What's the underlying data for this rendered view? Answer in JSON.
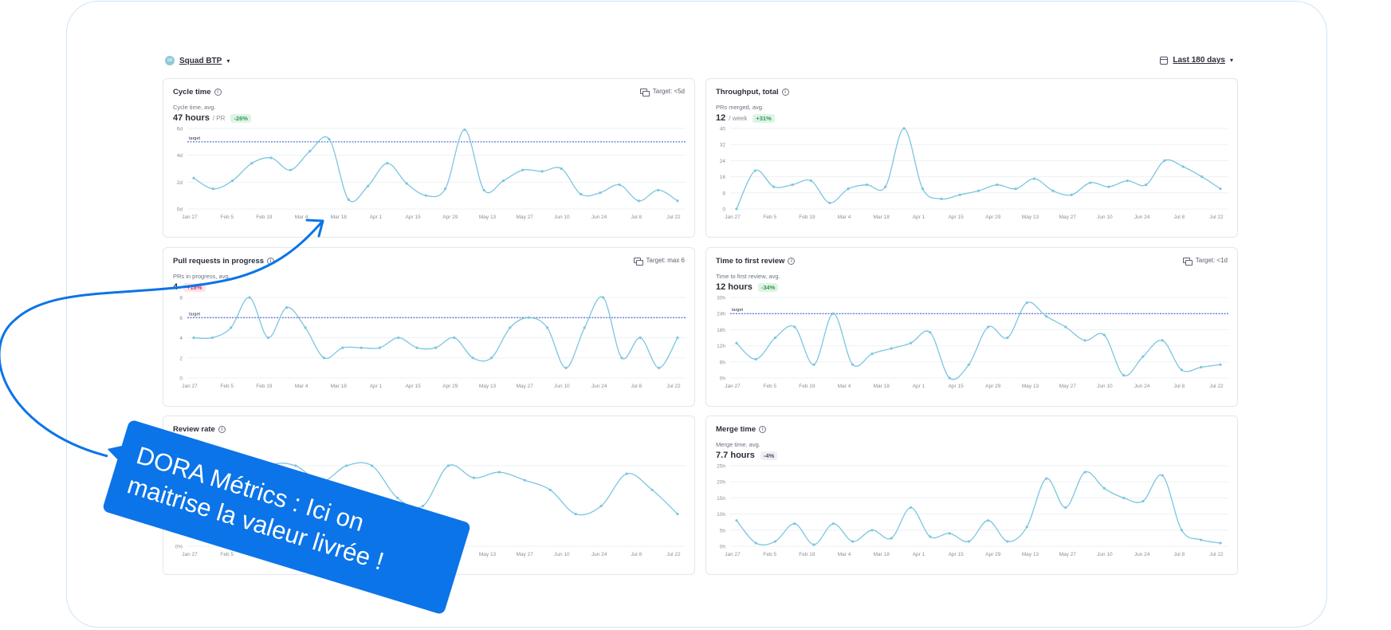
{
  "header": {
    "squad_initials": "SB",
    "squad_label": "Squad BTP",
    "date_range_label": "Last 180 days"
  },
  "x_ticks": [
    "Jan 27",
    "Feb 5",
    "Feb 19",
    "Mar 4",
    "Mar 18",
    "Apr 1",
    "Apr 15",
    "Apr 29",
    "May 13",
    "May 27",
    "Jun 10",
    "Jun 24",
    "Jul 8",
    "Jul 22"
  ],
  "colors": {
    "line": "#7cc6df",
    "target_line": "#2f55c9",
    "accent": "#0b74e8"
  },
  "cards": [
    {
      "title": "Cycle time",
      "target": "Target: <5d",
      "subtitle": "Cycle time, avg.",
      "value": "47 hours",
      "unit": "/ PR",
      "delta": "-26%",
      "delta_kind": "good",
      "y_ticks": [
        "0d",
        "2d",
        "4d",
        "6d"
      ],
      "ymax": 6,
      "target_value": 5,
      "target_label": "target",
      "values": [
        2.3,
        1.5,
        2.1,
        3.4,
        3.8,
        2.9,
        4.3,
        5.2,
        0.7,
        1.7,
        3.4,
        1.9,
        1.0,
        1.5,
        5.9,
        1.4,
        2.1,
        2.9,
        2.8,
        3.0,
        1.1,
        1.2,
        1.8,
        0.6,
        1.4,
        0.6
      ]
    },
    {
      "title": "Throughput, total",
      "target": "",
      "subtitle": "PRs merged, avg.",
      "value": "12",
      "unit": "/ week",
      "delta": "+31%",
      "delta_kind": "good",
      "y_ticks": [
        "0",
        "8",
        "16",
        "24",
        "32",
        "40"
      ],
      "ymax": 40,
      "values": [
        0,
        19,
        11,
        12,
        14,
        3,
        10,
        12,
        11,
        40,
        10,
        5,
        7,
        9,
        12,
        10,
        15,
        9,
        7,
        13,
        11,
        14,
        12,
        24,
        21,
        16,
        10
      ]
    },
    {
      "title": "Pull requests in progress",
      "target": "Target: max 6",
      "subtitle": "PRs in progress, avg.",
      "value": "4",
      "unit": "",
      "delta": "+18%",
      "delta_kind": "bad",
      "y_ticks": [
        "0",
        "2",
        "4",
        "6",
        "8"
      ],
      "ymax": 8,
      "target_value": 6,
      "target_label": "target",
      "values": [
        4,
        4,
        5,
        8,
        4,
        7,
        5,
        2,
        3,
        3,
        3,
        4,
        3,
        3,
        4,
        2,
        2,
        5,
        6,
        5,
        1,
        5,
        8,
        2,
        4,
        1,
        4
      ]
    },
    {
      "title": "Time to first review",
      "target": "Target: <1d",
      "subtitle": "Time to first review, avg.",
      "value": "12 hours",
      "unit": "",
      "delta": "-34%",
      "delta_kind": "good",
      "y_ticks": [
        "0h",
        "6h",
        "12h",
        "18h",
        "24h",
        "30h"
      ],
      "ymax": 30,
      "target_value": 24,
      "target_label": "target",
      "values": [
        13,
        7,
        15,
        19,
        5,
        24,
        5,
        9,
        11,
        13,
        17,
        0,
        5,
        19,
        15,
        28,
        23,
        19,
        14,
        16,
        1,
        8,
        14,
        3,
        4,
        5
      ]
    },
    {
      "title": "Review rate",
      "target": "",
      "subtitle": "",
      "value": "",
      "unit": "",
      "delta": "",
      "delta_kind": "neutral",
      "y_ticks": [
        "0%",
        "20%"
      ],
      "ymax": 100,
      "values": [
        60,
        65,
        70,
        100,
        100,
        80,
        100,
        100,
        60,
        50,
        100,
        85,
        92,
        82,
        70,
        40,
        50,
        90,
        70,
        40
      ]
    },
    {
      "title": "Merge time",
      "target": "",
      "subtitle": "Merge time, avg.",
      "value": "7.7 hours",
      "unit": "",
      "delta": "-4%",
      "delta_kind": "neutral",
      "y_ticks": [
        "0h",
        "5h",
        "10h",
        "15h",
        "20h",
        "25h"
      ],
      "ymax": 25,
      "values": [
        8,
        1,
        1.5,
        7,
        0.5,
        7,
        1.5,
        5,
        2.5,
        12,
        3,
        4,
        1.5,
        8,
        1.5,
        6,
        21,
        12,
        23,
        18,
        15,
        14,
        22,
        5,
        2,
        1
      ]
    }
  ],
  "callout": {
    "line1": "DORA Métrics : Ici on",
    "line2": "maitrise la valeur livrée !"
  }
}
